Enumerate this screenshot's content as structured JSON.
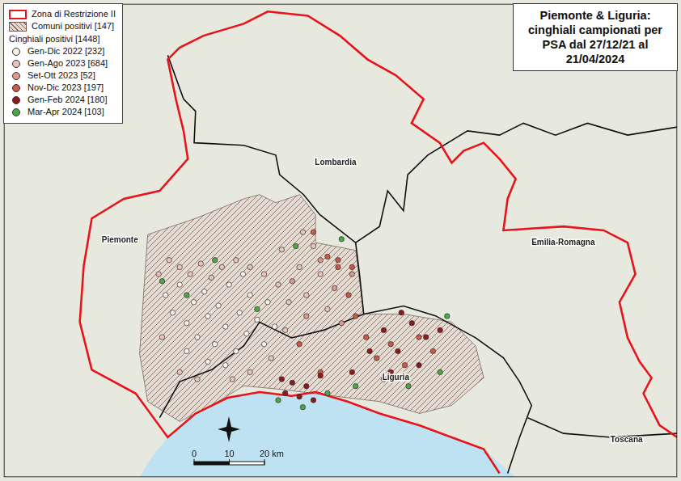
{
  "chart_data": {
    "type": "scatter",
    "title": "Piemonte & Liguria: cinghiali campionati per PSA dal 27/12/21 al 21/04/2024",
    "xlim": [
      0,
      191.4
    ],
    "ylim": [
      0,
      135.2
    ],
    "tick_labels": false,
    "grid": false,
    "legend": "top-left",
    "legend_title": "Cinghiali positivi [1448]",
    "restriction_zone": {
      "name": "Zona di Restrizione II",
      "color": "#e8141b",
      "path": [
        [
          140.9,
          1.1
        ],
        [
          136.4,
          8.0
        ],
        [
          127.3,
          11.4
        ],
        [
          118.2,
          14.8
        ],
        [
          106.8,
          18.2
        ],
        [
          97.7,
          21.6
        ],
        [
          88.6,
          24.3
        ],
        [
          81.8,
          23.2
        ],
        [
          72.7,
          24.3
        ],
        [
          63.6,
          22.7
        ],
        [
          54.5,
          18.2
        ],
        [
          46.6,
          11.4
        ],
        [
          37.5,
          23.9
        ],
        [
          25.0,
          30.7
        ],
        [
          21.6,
          44.3
        ],
        [
          22.7,
          60.2
        ],
        [
          25.0,
          73.9
        ],
        [
          34.1,
          79.5
        ],
        [
          44.3,
          81.8
        ],
        [
          52.3,
          90.9
        ],
        [
          51.1,
          98.9
        ],
        [
          48.9,
          108.0
        ],
        [
          46.6,
          119.3
        ],
        [
          50.0,
          122.7
        ],
        [
          56.8,
          126.1
        ],
        [
          68.2,
          129.5
        ],
        [
          75.0,
          133.0
        ],
        [
          86.4,
          131.8
        ],
        [
          95.5,
          126.1
        ],
        [
          103.4,
          119.3
        ],
        [
          111.4,
          114.8
        ],
        [
          119.3,
          108.0
        ],
        [
          115.9,
          101.1
        ],
        [
          123.9,
          95.5
        ],
        [
          127.3,
          89.8
        ],
        [
          130.7,
          93.2
        ],
        [
          136.4,
          95.5
        ],
        [
          140.9,
          90.9
        ],
        [
          145.5,
          85.2
        ],
        [
          143.2,
          79.5
        ],
        [
          142.0,
          70.5
        ],
        [
          159.1,
          71.6
        ],
        [
          170.5,
          70.5
        ],
        [
          177.3,
          67.0
        ],
        [
          179.5,
          58.0
        ],
        [
          175.0,
          50.0
        ],
        [
          177.3,
          39.8
        ],
        [
          180.7,
          33.0
        ],
        [
          184.1,
          28.4
        ],
        [
          181.8,
          23.9
        ],
        [
          186.4,
          14.8
        ],
        [
          191.4,
          11.4
        ]
      ]
    },
    "positive_municipalities": {
      "name": "Comuni positivi [147]",
      "areas": [
        [
          [
            40.9,
            69.3
          ],
          [
            54.5,
            73.9
          ],
          [
            68.2,
            79.5
          ],
          [
            72.7,
            80.7
          ],
          [
            77.3,
            78.4
          ],
          [
            84.1,
            80.7
          ],
          [
            88.6,
            75.0
          ],
          [
            88.6,
            67.0
          ],
          [
            100.0,
            64.8
          ],
          [
            102.3,
            46.6
          ],
          [
            113.6,
            46.6
          ],
          [
            127.3,
            44.3
          ],
          [
            134.1,
            37.5
          ],
          [
            136.4,
            28.4
          ],
          [
            127.3,
            20.5
          ],
          [
            118.2,
            18.2
          ],
          [
            106.8,
            21.6
          ],
          [
            97.7,
            22.7
          ],
          [
            79.5,
            25.0
          ],
          [
            68.2,
            26.1
          ],
          [
            59.1,
            20.5
          ],
          [
            50.0,
            15.9
          ],
          [
            40.9,
            21.6
          ],
          [
            38.6,
            35.2
          ],
          [
            39.8,
            53.4
          ],
          [
            40.9,
            69.3
          ]
        ]
      ]
    },
    "sea": [
      [
        38.6,
        0.0
      ],
      [
        42.0,
        5.7
      ],
      [
        46.6,
        11.4
      ],
      [
        54.5,
        18.2
      ],
      [
        63.6,
        22.7
      ],
      [
        72.7,
        24.3
      ],
      [
        81.8,
        23.2
      ],
      [
        88.6,
        24.3
      ],
      [
        97.7,
        21.6
      ],
      [
        106.8,
        18.2
      ],
      [
        118.2,
        14.8
      ],
      [
        127.3,
        11.4
      ],
      [
        136.4,
        8.0
      ],
      [
        145.5,
        0.0
      ],
      [
        38.6,
        0.0
      ]
    ],
    "region_borders": [
      [
        [
          46.6,
          120.5
        ],
        [
          51.1,
          108.0
        ],
        [
          54.5,
          104.5
        ],
        [
          54.1,
          95.5
        ],
        [
          68.2,
          94.8
        ],
        [
          77.3,
          92.0
        ],
        [
          78.4,
          86.4
        ],
        [
          85.2,
          80.7
        ],
        [
          89.8,
          75.0
        ],
        [
          100.0,
          67.0
        ],
        [
          101.1,
          58.0
        ],
        [
          102.3,
          46.6
        ]
      ],
      [
        [
          100.0,
          67.0
        ],
        [
          106.8,
          71.6
        ],
        [
          109.1,
          81.8
        ],
        [
          113.6,
          76.1
        ],
        [
          114.8,
          86.4
        ],
        [
          120.5,
          92.0
        ],
        [
          131.8,
          98.9
        ],
        [
          140.9,
          97.7
        ],
        [
          147.7,
          101.1
        ],
        [
          156.8,
          97.7
        ],
        [
          165.9,
          101.1
        ],
        [
          177.3,
          97.7
        ],
        [
          191.4,
          100.0
        ]
      ],
      [
        [
          44.3,
          17.0
        ],
        [
          50.0,
          27.3
        ],
        [
          59.1,
          30.7
        ],
        [
          68.2,
          37.5
        ],
        [
          72.7,
          44.3
        ],
        [
          81.8,
          39.8
        ],
        [
          90.9,
          42.0
        ],
        [
          102.3,
          46.6
        ]
      ],
      [
        [
          102.3,
          46.6
        ],
        [
          113.6,
          48.9
        ],
        [
          122.7,
          46.1
        ],
        [
          134.1,
          39.8
        ],
        [
          142.0,
          34.1
        ],
        [
          146.6,
          27.3
        ],
        [
          150.0,
          20.5
        ],
        [
          146.6,
          11.4
        ],
        [
          143.2,
          1.1
        ]
      ],
      [
        [
          148.9,
          17.0
        ],
        [
          159.1,
          12.5
        ],
        [
          172.7,
          11.4
        ],
        [
          191.4,
          12.5
        ]
      ]
    ],
    "region_labels": [
      {
        "text": "Piemonte",
        "x": 33.0,
        "y": 67.7
      },
      {
        "text": "Lombardia",
        "x": 94.3,
        "y": 89.8
      },
      {
        "text": "Emilia-Romagna",
        "x": 159.0,
        "y": 67.0
      },
      {
        "text": "Liguria",
        "x": 111.4,
        "y": 28.4
      },
      {
        "text": "Toscana",
        "x": 177.0,
        "y": 10.7
      }
    ],
    "series": [
      {
        "name": "Gen-Dic 2022 [232]",
        "color": "#f7f3ee",
        "points": [
          [
            46,
            52
          ],
          [
            48,
            47
          ],
          [
            50,
            55
          ],
          [
            52,
            44
          ],
          [
            54,
            50
          ],
          [
            55,
            40
          ],
          [
            57,
            53
          ],
          [
            58,
            46
          ],
          [
            60,
            38
          ],
          [
            61,
            49
          ],
          [
            63,
            43
          ],
          [
            64,
            55
          ],
          [
            66,
            36
          ],
          [
            67,
            47
          ],
          [
            69,
            41
          ],
          [
            70,
            52
          ],
          [
            72,
            45
          ],
          [
            74,
            38
          ],
          [
            52,
            36
          ],
          [
            58,
            33
          ],
          [
            63,
            32
          ],
          [
            68,
            58
          ],
          [
            75,
            50
          ],
          [
            77,
            43
          ]
        ]
      },
      {
        "name": "Gen-Ago 2023 [684]",
        "color": "#e8c6c0",
        "points": [
          [
            44,
            58
          ],
          [
            47,
            62
          ],
          [
            50,
            60
          ],
          [
            53,
            58
          ],
          [
            56,
            61
          ],
          [
            59,
            57
          ],
          [
            62,
            60
          ],
          [
            66,
            62
          ],
          [
            70,
            60
          ],
          [
            74,
            58
          ],
          [
            78,
            55
          ],
          [
            81,
            50
          ],
          [
            84,
            60
          ],
          [
            86,
            52
          ],
          [
            88,
            66
          ],
          [
            90,
            58
          ],
          [
            92,
            48
          ],
          [
            80,
            42
          ],
          [
            76,
            34
          ],
          [
            70,
            30
          ],
          [
            50,
            30
          ],
          [
            45,
            40
          ],
          [
            55,
            28
          ],
          [
            65,
            28
          ],
          [
            85,
            70
          ],
          [
            79,
            65
          ]
        ]
      },
      {
        "name": "Set-Ott 2023 [52]",
        "color": "#d99a8e",
        "points": [
          [
            82,
            56
          ],
          [
            86,
            46
          ],
          [
            90,
            62
          ],
          [
            94,
            54
          ],
          [
            96,
            44
          ],
          [
            99,
            58
          ]
        ]
      },
      {
        "name": "Nov-Dic 2023 [197]",
        "color": "#c85a4a",
        "points": [
          [
            88,
            70
          ],
          [
            92,
            63
          ],
          [
            95,
            60
          ],
          [
            98,
            52
          ],
          [
            100,
            46
          ],
          [
            103,
            40
          ],
          [
            106,
            34
          ],
          [
            110,
            38
          ],
          [
            114,
            32
          ],
          [
            118,
            40
          ],
          [
            122,
            36
          ],
          [
            95,
            62
          ],
          [
            99,
            60
          ],
          [
            84,
            38
          ],
          [
            90,
            30
          ],
          [
            108,
            28
          ]
        ]
      },
      {
        "name": "Gen-Feb 2024 [180]",
        "color": "#8b1a1a",
        "points": [
          [
            79,
            28
          ],
          [
            80,
            24
          ],
          [
            82,
            27
          ],
          [
            84,
            23
          ],
          [
            86,
            26
          ],
          [
            88,
            22
          ],
          [
            90,
            29
          ],
          [
            104,
            36
          ],
          [
            108,
            42
          ],
          [
            112,
            36
          ],
          [
            116,
            44
          ],
          [
            120,
            40
          ],
          [
            110,
            30
          ],
          [
            118,
            32
          ],
          [
            124,
            42
          ],
          [
            113,
            47
          ],
          [
            99,
            30
          ]
        ]
      },
      {
        "name": "Mar-Apr 2024 [103]",
        "color": "#4aa84a",
        "points": [
          [
            45,
            56
          ],
          [
            52,
            52
          ],
          [
            60,
            62
          ],
          [
            72,
            48
          ],
          [
            78,
            22
          ],
          [
            85,
            20
          ],
          [
            92,
            24
          ],
          [
            100,
            26
          ],
          [
            115,
            26
          ],
          [
            124,
            30
          ],
          [
            126,
            46
          ],
          [
            96,
            68
          ],
          [
            83,
            66
          ]
        ]
      }
    ],
    "scale_bar": {
      "ticks": [
        0,
        10,
        20
      ],
      "labels": [
        "0",
        "10",
        "20 km"
      ]
    }
  }
}
